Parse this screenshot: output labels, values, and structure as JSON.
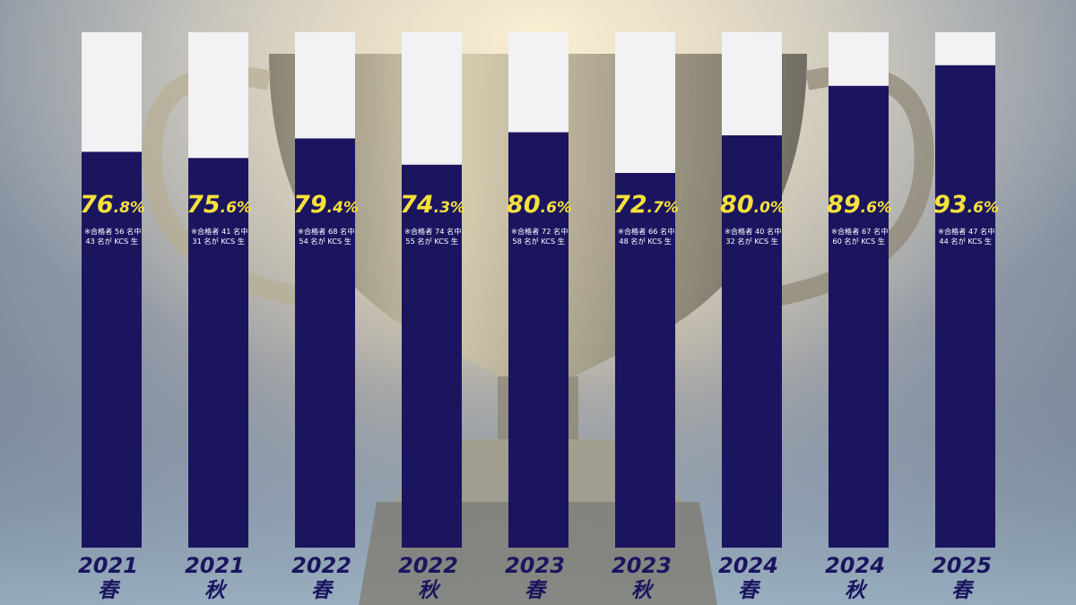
{
  "chart_data": {
    "type": "bar",
    "stacked_to_100": true,
    "categories": [
      {
        "year": "2021",
        "season": "春"
      },
      {
        "year": "2021",
        "season": "秋"
      },
      {
        "year": "2022",
        "season": "春"
      },
      {
        "year": "2022",
        "season": "秋"
      },
      {
        "year": "2023",
        "season": "春"
      },
      {
        "year": "2023",
        "season": "秋"
      },
      {
        "year": "2024",
        "season": "春"
      },
      {
        "year": "2024",
        "season": "秋"
      },
      {
        "year": "2025",
        "season": "春"
      }
    ],
    "values": [
      76.8,
      75.6,
      79.4,
      74.3,
      80.6,
      72.7,
      80.0,
      89.6,
      93.6
    ],
    "labels": [
      {
        "int": "76",
        "dec": ".8",
        "unit": "%",
        "note1": "※合格者 56 名中",
        "note2": "43 名が KCS 生"
      },
      {
        "int": "75",
        "dec": ".6",
        "unit": "%",
        "note1": "※合格者 41 名中",
        "note2": "31 名が KCS 生"
      },
      {
        "int": "79",
        "dec": ".4",
        "unit": "%",
        "note1": "※合格者 68 名中",
        "note2": "54 名が KCS 生"
      },
      {
        "int": "74",
        "dec": ".3",
        "unit": "%",
        "note1": "※合格者 74 名中",
        "note2": "55 名が KCS 生"
      },
      {
        "int": "80",
        "dec": ".6",
        "unit": "%",
        "note1": "※合格者 72 名中",
        "note2": "58 名が KCS 生"
      },
      {
        "int": "72",
        "dec": ".7",
        "unit": "%",
        "note1": "※合格者 66 名中",
        "note2": "48 名が KCS 生"
      },
      {
        "int": "80",
        "dec": ".0",
        "unit": "%",
        "note1": "※合格者 40 名中",
        "note2": "32 名が KCS 生"
      },
      {
        "int": "89",
        "dec": ".6",
        "unit": "%",
        "note1": "※合格者 67 名中",
        "note2": "60 名が KCS 生"
      },
      {
        "int": "93",
        "dec": ".6",
        "unit": "%",
        "note1": "※合格者 47 名中",
        "note2": "44 名が KCS 生"
      }
    ],
    "ylim": [
      0,
      100
    ],
    "grid": false,
    "legend": "none",
    "colors": {
      "bar": "#1b1560",
      "remainder": "#f2f2f4",
      "label": "#f5e13a",
      "note": "#ffffff",
      "axis_label": "#1b1560"
    }
  }
}
